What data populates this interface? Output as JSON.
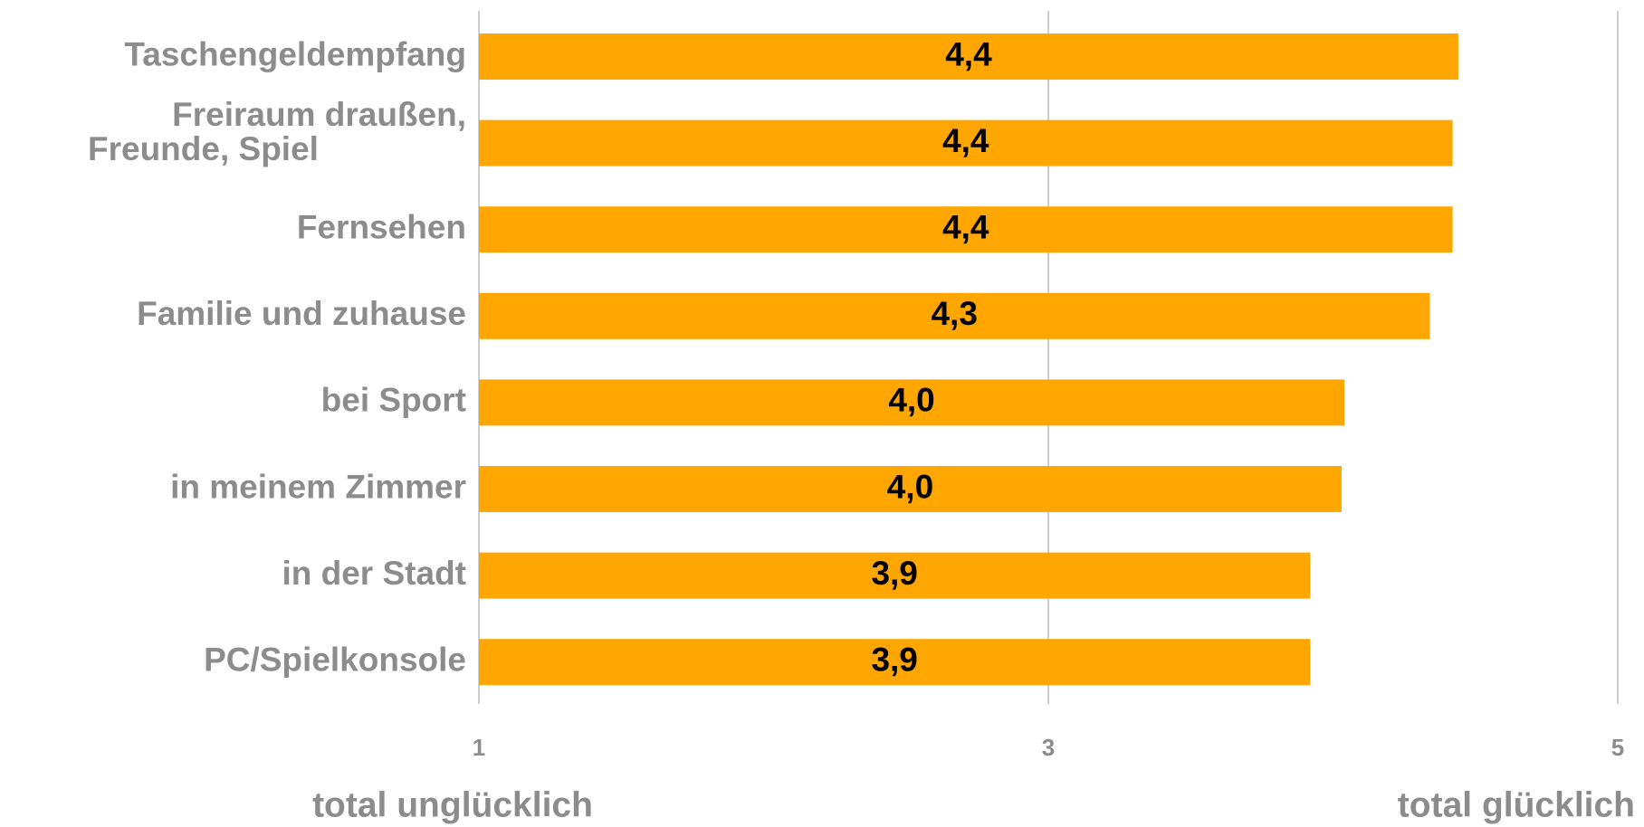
{
  "chart_data": {
    "type": "barh",
    "categories": [
      "Taschengeldempfang",
      "Freiraum draußen,\nFreunde, Spiel",
      "Fernsehen",
      "Familie und zuhause",
      "bei Sport",
      "in meinem Zimmer",
      "in der Stadt",
      "PC/Spielkonsole"
    ],
    "values": [
      4.44,
      4.42,
      4.42,
      4.34,
      4.04,
      4.03,
      3.92,
      3.92
    ],
    "value_labels": [
      "4,4",
      "4,4",
      "4,4",
      "4,3",
      "4,0",
      "4,0",
      "3,9",
      "3,9"
    ],
    "color": "#ffa600",
    "xlim": [
      1,
      5
    ],
    "xticks": [
      1,
      3,
      5
    ],
    "grid": true,
    "x_label_left": "total unglücklich",
    "x_label_right": "total glücklich"
  }
}
